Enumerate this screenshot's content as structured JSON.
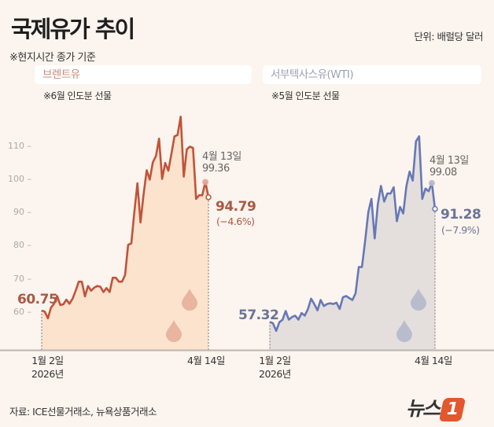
{
  "header": {
    "title": "국제유가 추이",
    "unit": "단위: 배럴당 달러",
    "note": "※현지시간 종가 기준"
  },
  "source": "자료: ICE선물거래소, 뉴욕상품거래소",
  "logo": "뉴스1",
  "colors": {
    "brent_line": "#c0533a",
    "brent_fill": "#fbe3cd",
    "wti_line": "#6678b6",
    "wti_fill": "#e4dfdc",
    "background": "#fcf4ee"
  },
  "chart_data": [
    {
      "type": "area",
      "title": "브렌트유",
      "subtitle": "※6월 인도분 선물",
      "x_start_label": "1월 2일",
      "x_start_year": "2026년",
      "x_end_label": "4월 14일",
      "yticks": [
        "110 –",
        "100 –",
        "90 –",
        "80 –",
        "70 –",
        "60 –"
      ],
      "ylim": [
        50,
        120
      ],
      "values": [
        60.75,
        60.4,
        58.4,
        61.6,
        62.8,
        65.1,
        62.4,
        62.6,
        64,
        62.8,
        64.3,
        66.7,
        69.4,
        69.4,
        65,
        68.1,
        66.7,
        67.6,
        68.1,
        67.9,
        66.3,
        67.5,
        66.3,
        70.6,
        70.6,
        69.4,
        69.4,
        71.4,
        80.5,
        80.9,
        90.3,
        99,
        87.2,
        95.8,
        102.9,
        100.1,
        105.3,
        107.2,
        112.4,
        100.3,
        105.1,
        102.8,
        107.8,
        113.1,
        113.5,
        119,
        101,
        109.2,
        110,
        109.6,
        94.3,
        95.4,
        95.4,
        99.36,
        94.79
      ],
      "start_value": "60.75",
      "prev_label": "4월 13일",
      "prev_value": "99.36",
      "last_value": "94.79",
      "last_change": "(−4.6%)"
    },
    {
      "type": "area",
      "title": "서부텍사스유(WTI)",
      "subtitle": "※5월 인도분 선물",
      "x_start_label": "1월 2일",
      "x_start_year": "2026년",
      "x_end_label": "4월 14일",
      "ylim": [
        50,
        120
      ],
      "values": [
        57.32,
        56.9,
        54.6,
        57.2,
        58,
        60.6,
        58,
        58.8,
        59.2,
        58,
        60,
        59.2,
        61.2,
        64.3,
        62.7,
        60.8,
        63.9,
        62.1,
        62.7,
        62.9,
        62.7,
        63.1,
        61.2,
        64.7,
        65.1,
        64.5,
        63.9,
        65.9,
        73.8,
        73.8,
        81.7,
        90.3,
        94.3,
        82.4,
        92.7,
        98.2,
        93.5,
        95.9,
        95.9,
        97.8,
        87.6,
        91.9,
        89.9,
        98.2,
        102.5,
        99.8,
        111.6,
        113.1,
        94.3,
        97.4,
        96.6,
        99.08,
        91.28
      ],
      "start_value": "57.32",
      "prev_label": "4월 13일",
      "prev_value": "99.08",
      "last_value": "91.28",
      "last_change": "(−7.9%)"
    }
  ]
}
